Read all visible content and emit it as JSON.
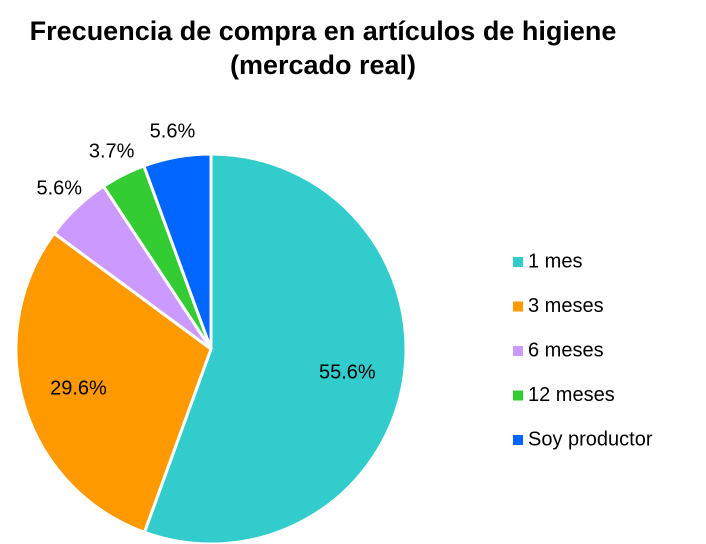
{
  "chart_data": {
    "type": "pie",
    "title": "Frecuencia de compra en artículos de higiene (mercado real)",
    "categories": [
      "1 mes",
      "3 meses",
      "6 meses",
      "12 meses",
      "Soy productor"
    ],
    "values": [
      55.6,
      29.6,
      5.6,
      3.7,
      5.6
    ],
    "value_labels": [
      "55.6%",
      "29.6%",
      "5.6%",
      "3.7%",
      "5.6%"
    ],
    "colors": [
      "#33cccc",
      "#ff9900",
      "#cc99ff",
      "#33cc33",
      "#0066ff"
    ],
    "legend": "right"
  }
}
